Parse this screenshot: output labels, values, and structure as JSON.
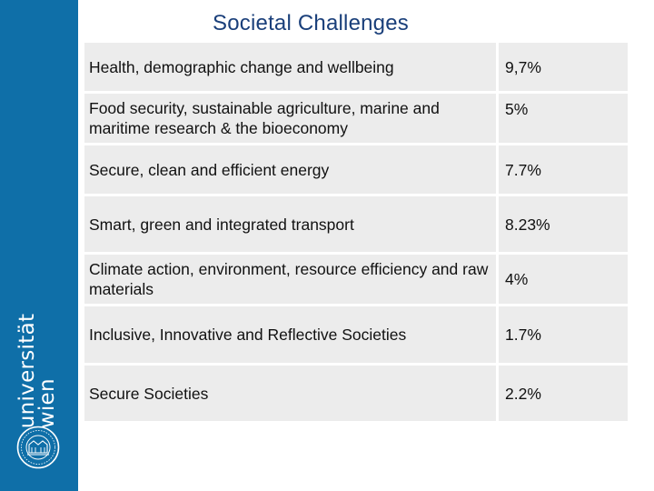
{
  "title": "Societal Challenges",
  "challenges": [
    {
      "name": "Health, demographic change and wellbeing",
      "value": "9,7%"
    },
    {
      "name": "Food security, sustainable agriculture, marine and maritime research & the bioeconomy",
      "value": "5%"
    },
    {
      "name": "Secure, clean and efficient energy",
      "value": "7.7%"
    },
    {
      "name": "Smart, green and integrated transport",
      "value": "8.23%"
    },
    {
      "name": "Climate action, environment, resource efficiency and raw materials",
      "value": "4%"
    },
    {
      "name": "Inclusive, Innovative and Reflective Societies",
      "value": "1.7%"
    },
    {
      "name": "Secure Societies",
      "value": "2.2%"
    }
  ],
  "logo": {
    "line1": "universität",
    "line2": "wien"
  },
  "colors": {
    "sidebar": "#0f6fa8",
    "title": "#1a3f7a",
    "cell": "#ececec"
  }
}
